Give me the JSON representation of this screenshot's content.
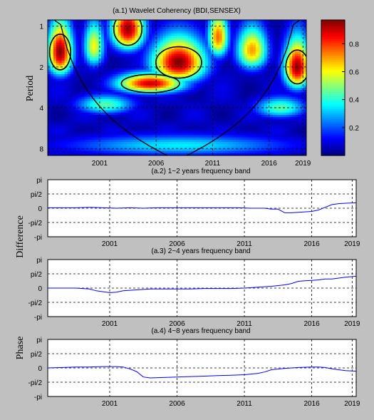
{
  "chart_data": [
    {
      "id": "a1",
      "type": "heatmap",
      "title": "(a.1)  Wavelet Coherency (BDI,SENSEX)",
      "ylabel": "Period",
      "x_ticks": [
        "2001",
        "2006",
        "2011",
        "2016",
        "2019"
      ],
      "x_tick_values": [
        2001,
        2006,
        2011,
        2016,
        2019
      ],
      "xlim": [
        1996.4,
        2019.3
      ],
      "y_ticks": [
        "1",
        "2",
        "4",
        "8"
      ],
      "y_tick_values": [
        1,
        2,
        4,
        8
      ],
      "ylim": [
        0.9,
        9.0
      ],
      "y_scale": "log2",
      "grid": true,
      "colorbar": {
        "ticks": [
          "0.2",
          "0.4",
          "0.6",
          "0.8"
        ],
        "tick_values": [
          0.2,
          0.4,
          0.6,
          0.8
        ],
        "range": [
          0,
          0.97
        ],
        "colormap": "jet"
      },
      "cone_of_influence": true,
      "coherence_regions": [
        {
          "cx": 1997.5,
          "cy": 1.55,
          "rx": 1.2,
          "ry": 0.75,
          "strength": 0.97
        },
        {
          "cx": 2003.5,
          "cy": 1.05,
          "rx": 1.6,
          "ry": 0.45,
          "strength": 0.95
        },
        {
          "cx": 2008.0,
          "cy": 1.85,
          "rx": 2.6,
          "ry": 0.75,
          "strength": 0.97
        },
        {
          "cx": 2005.5,
          "cy": 2.65,
          "rx": 3.3,
          "ry": 0.5,
          "strength": 0.9
        },
        {
          "cx": 2018.5,
          "cy": 2.0,
          "rx": 1.3,
          "ry": 0.9,
          "strength": 0.95
        },
        {
          "cx": 2014.5,
          "cy": 1.5,
          "rx": 1.5,
          "ry": 0.6,
          "strength": 0.7
        },
        {
          "cx": 2011.5,
          "cy": 1.2,
          "rx": 1.0,
          "ry": 0.5,
          "strength": 0.75
        },
        {
          "cx": 2000.5,
          "cy": 1.4,
          "rx": 1.0,
          "ry": 0.6,
          "strength": 0.6
        },
        {
          "cx": 2008.0,
          "cy": 7.6,
          "rx": 11.0,
          "ry": 1.5,
          "strength": 0.35
        },
        {
          "cx": 2001.5,
          "cy": 3.8,
          "rx": 2.8,
          "ry": 0.7,
          "strength": 0.45
        },
        {
          "cx": 2017.0,
          "cy": 4.0,
          "rx": 2.5,
          "ry": 0.8,
          "strength": 0.45
        }
      ]
    },
    {
      "id": "a2",
      "type": "line",
      "title": "(a.2)  1~2 years frequency band",
      "ylabel": "",
      "x_ticks": [
        "2001",
        "2006",
        "2011",
        "2016",
        "2019"
      ],
      "x_tick_values": [
        2001,
        2006,
        2011,
        2016,
        2019
      ],
      "xlim": [
        1996.4,
        2019.3
      ],
      "y_ticks": [
        "pi",
        "pi/2",
        "0",
        "-pi/2",
        "-pi"
      ],
      "y_tick_values": [
        3.1416,
        1.5708,
        0,
        -1.5708,
        -3.1416
      ],
      "ylim": [
        -3.1416,
        3.1416
      ],
      "grid": true,
      "series": [
        {
          "color": "#0000ff",
          "x": [
            1996.4,
            1997.5,
            1998.5,
            1999.5,
            2000.5,
            2001.5,
            2002.5,
            2003.5,
            2004.5,
            2005.5,
            2006.5,
            2007.5,
            2008.5,
            2009.5,
            2010.5,
            2011.5,
            2012.5,
            2013.0,
            2013.5,
            2014.0,
            2014.5,
            2015.0,
            2015.5,
            2016.0,
            2016.5,
            2017.0,
            2017.5,
            2018.0,
            2018.5,
            2019.3
          ],
          "y": [
            0.05,
            0.05,
            0.05,
            0.1,
            0.05,
            0.0,
            0.05,
            0.0,
            0.05,
            0.05,
            0.05,
            0.05,
            0.05,
            0.05,
            0.05,
            0.0,
            0.0,
            -0.1,
            -0.1,
            -0.5,
            -0.5,
            -0.45,
            -0.4,
            -0.35,
            -0.2,
            0.1,
            0.4,
            0.5,
            0.55,
            0.6
          ]
        }
      ]
    },
    {
      "id": "a3",
      "type": "line",
      "title": "(a.3)  2~4 years frequency band",
      "ylabel": "",
      "x_ticks": [
        "2001",
        "2006",
        "2011",
        "2016",
        "2019"
      ],
      "x_tick_values": [
        2001,
        2006,
        2011,
        2016,
        2019
      ],
      "xlim": [
        1996.4,
        2019.3
      ],
      "y_ticks": [
        "pi",
        "pi/2",
        "0",
        "-pi/2",
        "-pi"
      ],
      "y_tick_values": [
        3.1416,
        1.5708,
        0,
        -1.5708,
        -3.1416
      ],
      "ylim": [
        -3.1416,
        3.1416
      ],
      "grid": true,
      "series": [
        {
          "color": "#0000ff",
          "x": [
            1996.4,
            1997.5,
            1998.5,
            1999.5,
            2000.0,
            2000.5,
            2001.0,
            2001.5,
            2002.0,
            2003.0,
            2004.0,
            2005.0,
            2006.0,
            2007.0,
            2008.0,
            2009.0,
            2010.0,
            2011.0,
            2012.0,
            2013.0,
            2014.0,
            2014.5,
            2015.0,
            2015.5,
            2016.0,
            2016.5,
            2017.0,
            2017.5,
            2018.0,
            2018.5,
            2019.3
          ],
          "y": [
            0.0,
            0.0,
            0.0,
            -0.1,
            -0.3,
            -0.4,
            -0.5,
            -0.45,
            -0.3,
            -0.2,
            -0.1,
            -0.1,
            -0.1,
            -0.1,
            -0.05,
            -0.05,
            -0.05,
            0.0,
            0.1,
            0.2,
            0.35,
            0.5,
            0.75,
            0.8,
            0.85,
            0.9,
            1.0,
            1.0,
            1.1,
            1.2,
            1.3
          ]
        }
      ]
    },
    {
      "id": "a4",
      "type": "line",
      "title": "(a.4)  4~8 years frequency band",
      "ylabel": "",
      "x_ticks": [
        "2001",
        "2006",
        "2011",
        "2016",
        "2019"
      ],
      "x_tick_values": [
        2001,
        2006,
        2011,
        2016,
        2019
      ],
      "xlim": [
        1996.4,
        2019.3
      ],
      "y_ticks": [
        "pi",
        "pi/2",
        "0",
        "-pi/2",
        "-pi"
      ],
      "y_tick_values": [
        3.1416,
        1.5708,
        0,
        -1.5708,
        -3.1416
      ],
      "ylim": [
        -3.1416,
        3.1416
      ],
      "grid": true,
      "series": [
        {
          "color": "#0000ff",
          "x": [
            1996.4,
            1997.5,
            1998.5,
            1999.5,
            2000.5,
            2001.5,
            2002.0,
            2002.5,
            2003.0,
            2003.5,
            2004.0,
            2005.0,
            2006.0,
            2007.0,
            2008.0,
            2009.0,
            2010.0,
            2011.0,
            2012.0,
            2012.5,
            2013.0,
            2014.0,
            2015.0,
            2016.0,
            2016.5,
            2017.0,
            2017.5,
            2018.0,
            2018.5,
            2019.3
          ],
          "y": [
            0.0,
            0.05,
            0.1,
            0.1,
            0.15,
            0.15,
            0.1,
            -0.1,
            -0.4,
            -1.0,
            -1.1,
            -1.05,
            -1.0,
            -0.95,
            -0.9,
            -0.85,
            -0.8,
            -0.75,
            -0.6,
            -0.45,
            -0.2,
            -0.05,
            0.05,
            0.1,
            0.1,
            0.05,
            -0.1,
            -0.2,
            -0.3,
            -0.35
          ]
        }
      ]
    }
  ],
  "labels": {
    "difference": "Difference",
    "phase": "Phase"
  }
}
